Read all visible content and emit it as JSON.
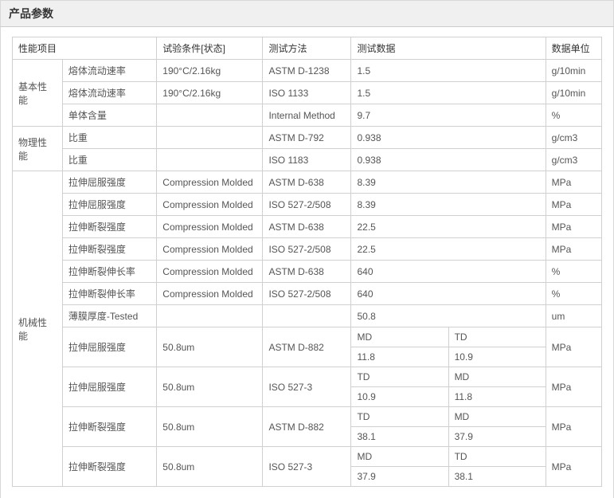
{
  "section": {
    "title": "产品参数"
  },
  "headers": {
    "property": "性能项目",
    "condition": "试验条件[状态]",
    "method": "测试方法",
    "data": "测试数据",
    "unit": "数据单位"
  },
  "categories": {
    "basic": "基本性能",
    "physical": "物理性能",
    "mechanical": "机械性能"
  },
  "rows": {
    "r1": {
      "name": "熔体流动速率",
      "cond": "190°C/2.16kg",
      "method": "ASTM D-1238",
      "data": "1.5",
      "unit": "g/10min"
    },
    "r2": {
      "name": "熔体流动速率",
      "cond": "190°C/2.16kg",
      "method": "ISO 1133",
      "data": "1.5",
      "unit": "g/10min"
    },
    "r3": {
      "name": "单体含量",
      "cond": "",
      "method": "Internal Method",
      "data": "9.7",
      "unit": "%"
    },
    "r4": {
      "name": "比重",
      "cond": "",
      "method": "ASTM D-792",
      "data": "0.938",
      "unit": "g/cm3"
    },
    "r5": {
      "name": "比重",
      "cond": "",
      "method": "ISO 1183",
      "data": "0.938",
      "unit": "g/cm3"
    },
    "r6": {
      "name": "拉伸屈服强度",
      "cond": "Compression Molded",
      "method": "ASTM D-638",
      "data": "8.39",
      "unit": "MPa"
    },
    "r7": {
      "name": "拉伸屈服强度",
      "cond": "Compression Molded",
      "method": "ISO 527-2/508",
      "data": "8.39",
      "unit": "MPa"
    },
    "r8": {
      "name": "拉伸断裂强度",
      "cond": "Compression Molded",
      "method": "ASTM D-638",
      "data": "22.5",
      "unit": "MPa"
    },
    "r9": {
      "name": "拉伸断裂强度",
      "cond": "Compression Molded",
      "method": "ISO 527-2/508",
      "data": "22.5",
      "unit": "MPa"
    },
    "r10": {
      "name": "拉伸断裂伸长率",
      "cond": "Compression Molded",
      "method": "ASTM D-638",
      "data": "640",
      "unit": "%"
    },
    "r11": {
      "name": "拉伸断裂伸长率",
      "cond": "Compression Molded",
      "method": "ISO 527-2/508",
      "data": "640",
      "unit": "%"
    },
    "r12": {
      "name": "薄膜厚度-Tested",
      "cond": "",
      "method": "",
      "data": "50.8",
      "unit": "um"
    },
    "r13": {
      "name": "拉伸屈服强度",
      "cond": "50.8um",
      "method": "ASTM D-882",
      "h1": "MD",
      "h2": "TD",
      "v1": "11.8",
      "v2": "10.9",
      "unit": "MPa"
    },
    "r14": {
      "name": "拉伸屈服强度",
      "cond": "50.8um",
      "method": "ISO 527-3",
      "h1": "TD",
      "h2": "MD",
      "v1": "10.9",
      "v2": "11.8",
      "unit": "MPa"
    },
    "r15": {
      "name": "拉伸断裂强度",
      "cond": "50.8um",
      "method": "ASTM D-882",
      "h1": "TD",
      "h2": "MD",
      "v1": "38.1",
      "v2": "37.9",
      "unit": "MPa"
    },
    "r16": {
      "name": "拉伸断裂强度",
      "cond": "50.8um",
      "method": "ISO 527-3",
      "h1": "MD",
      "h2": "TD",
      "v1": "37.9",
      "v2": "38.1",
      "unit": "MPa"
    }
  },
  "colors": {
    "header_bg": "#f0f0f0",
    "border": "#d0d0d0",
    "text": "#333333"
  }
}
